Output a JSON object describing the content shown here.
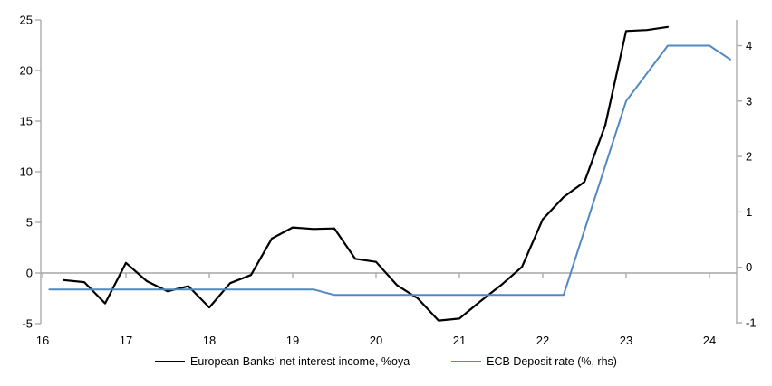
{
  "chart_data": {
    "type": "line",
    "title": "",
    "x_axis": {
      "tick_labels": [
        "16",
        "17",
        "18",
        "19",
        "20",
        "21",
        "22",
        "23",
        "24"
      ],
      "tick_values": [
        16,
        17,
        18,
        19,
        20,
        21,
        22,
        23,
        24
      ],
      "range": [
        16,
        24.33
      ],
      "grid": false
    },
    "left_axis": {
      "tick_labels": [
        "25",
        "20",
        "15",
        "10",
        "5",
        "0",
        "-5"
      ],
      "tick_values": [
        25,
        20,
        15,
        10,
        5,
        0,
        -5
      ],
      "range": [
        -5,
        25
      ]
    },
    "right_axis": {
      "tick_labels": [
        "4",
        "3",
        "2",
        "1",
        "0",
        "-1"
      ],
      "tick_values": [
        4,
        3,
        2,
        1,
        0,
        -1
      ],
      "range": [
        -1,
        4.5
      ]
    },
    "zero_line": true,
    "legend_position": "bottom-center",
    "series": [
      {
        "name": "European Banks' net interest income, %oya",
        "axis": "left",
        "color": "#000000",
        "points": [
          [
            16.25,
            -0.7
          ],
          [
            16.5,
            -0.9
          ],
          [
            16.75,
            -3.0
          ],
          [
            17.0,
            1.0
          ],
          [
            17.25,
            -0.8
          ],
          [
            17.5,
            -1.8
          ],
          [
            17.75,
            -1.3
          ],
          [
            18.0,
            -3.4
          ],
          [
            18.25,
            -1.0
          ],
          [
            18.5,
            -0.2
          ],
          [
            18.75,
            3.4
          ],
          [
            19.0,
            4.5
          ],
          [
            19.25,
            4.35
          ],
          [
            19.5,
            4.4
          ],
          [
            19.75,
            1.4
          ],
          [
            20.0,
            1.1
          ],
          [
            20.25,
            -1.2
          ],
          [
            20.5,
            -2.5
          ],
          [
            20.75,
            -4.7
          ],
          [
            21.0,
            -4.5
          ],
          [
            21.25,
            -2.8
          ],
          [
            21.5,
            -1.2
          ],
          [
            21.75,
            0.6
          ],
          [
            22.0,
            5.3
          ],
          [
            22.25,
            7.5
          ],
          [
            22.5,
            9.0
          ],
          [
            22.75,
            14.6
          ],
          [
            23.0,
            23.9
          ],
          [
            23.25,
            24.0
          ],
          [
            23.5,
            24.3
          ]
        ]
      },
      {
        "name": "ECB Deposit rate (%, rhs)",
        "axis": "right",
        "color": "#5188c4",
        "points": [
          [
            16.08,
            -0.4
          ],
          [
            19.25,
            -0.4
          ],
          [
            19.5,
            -0.5
          ],
          [
            22.25,
            -0.5
          ],
          [
            23.0,
            3.0
          ],
          [
            23.25,
            3.5
          ],
          [
            23.5,
            4.0
          ],
          [
            24.0,
            4.0
          ],
          [
            24.25,
            3.75
          ]
        ]
      }
    ]
  },
  "legend": {
    "items": [
      {
        "label": "European Banks' net interest income, %oya",
        "color": "#000000"
      },
      {
        "label": "ECB Deposit rate (%, rhs)",
        "color": "#5188c4"
      }
    ]
  },
  "colors": {
    "background": "#ffffff",
    "axis_gray": "#a6a6a6",
    "zero_line_gray": "#a6a6a6",
    "text": "#000000",
    "series_black": "#000000",
    "series_blue": "#5188c4"
  }
}
